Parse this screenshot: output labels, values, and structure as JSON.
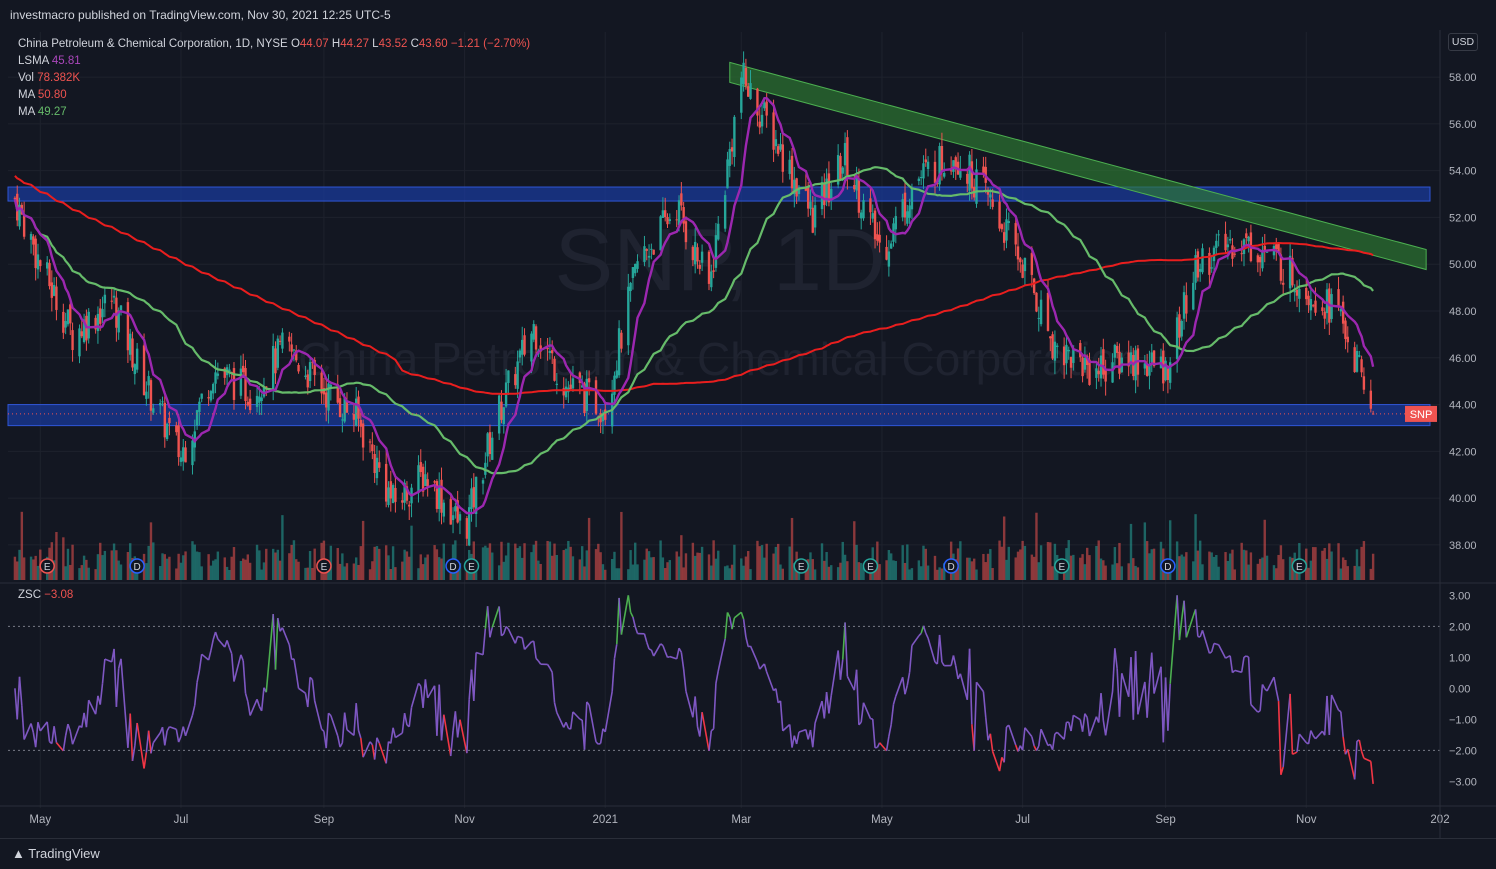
{
  "header": {
    "published": "investmacro published on TradingView.com, Nov 30, 2021 12:25 UTC-5"
  },
  "legend": {
    "symbol_line": "China Petroleum & Chemical Corporation, 1D, NYSE",
    "o_label": "O",
    "o": "44.07",
    "h_label": "H",
    "h": "44.27",
    "l_label": "L",
    "l": "43.52",
    "c_label": "C",
    "c": "43.60",
    "change": "−1.21 (−2.70%)",
    "lsma_label": "LSMA",
    "lsma": "45.81",
    "vol_label": "Vol",
    "vol": "78.382K",
    "ma1_label": "MA",
    "ma1": "50.80",
    "ma2_label": "MA",
    "ma2": "49.27",
    "zsc_label": "ZSC",
    "zsc": "−3.08"
  },
  "currency": "USD",
  "watermark": {
    "ticker": "SNP, 1D",
    "name": "China Petroleum & Chemical Corporation"
  },
  "price_tag": "SNP",
  "footer": {
    "brand": "TradingView"
  },
  "colors": {
    "up": "#26a69a",
    "down": "#ef5350",
    "lsma": "#9c27b0",
    "ma_red": "#e91e1e",
    "ma_green": "#66bb6a",
    "zone_blue": "#1a3a9a",
    "trend_green": "#2e7d32",
    "zsc": "#7e57c2"
  },
  "chart_data": [
    {
      "type": "candlestick",
      "title": "China Petroleum & Chemical Corporation, 1D, NYSE",
      "x_ticks": [
        "May",
        "Jul",
        "Sep",
        "Nov",
        "2021",
        "Mar",
        "May",
        "Jul",
        "Sep",
        "Nov",
        "202"
      ],
      "y_ticks": [
        "58.00",
        "56.00",
        "54.00",
        "52.00",
        "50.00",
        "48.00",
        "46.00",
        "44.00",
        "42.00",
        "40.00",
        "38.00"
      ],
      "ylim": [
        36.5,
        59.5
      ],
      "close_path": [
        [
          "2020-04-20",
          52.8
        ],
        [
          "2020-05-01",
          50
        ],
        [
          "2020-05-15",
          47
        ],
        [
          "2020-06-01",
          48.5
        ],
        [
          "2020-06-15",
          45
        ],
        [
          "2020-07-01",
          41.8
        ],
        [
          "2020-07-15",
          45.5
        ],
        [
          "2020-08-01",
          44.5
        ],
        [
          "2020-08-15",
          46.5
        ],
        [
          "2020-09-01",
          44.6
        ],
        [
          "2020-09-15",
          43.5
        ],
        [
          "2020-10-01",
          39.8
        ],
        [
          "2020-10-15",
          41
        ],
        [
          "2020-11-01",
          38.6
        ],
        [
          "2020-11-15",
          43.5
        ],
        [
          "2020-12-01",
          47.3
        ],
        [
          "2020-12-15",
          44.8
        ],
        [
          "2021-01-01",
          43.9
        ],
        [
          "2021-01-15",
          50
        ],
        [
          "2021-02-01",
          52.5
        ],
        [
          "2021-02-15",
          49
        ],
        [
          "2021-03-01",
          58
        ],
        [
          "2021-03-15",
          55.5
        ],
        [
          "2021-04-01",
          52
        ],
        [
          "2021-04-15",
          54.5
        ],
        [
          "2021-05-01",
          50.5
        ],
        [
          "2021-05-15",
          53.5
        ],
        [
          "2021-06-01",
          54.8
        ],
        [
          "2021-06-15",
          53
        ],
        [
          "2021-07-01",
          50
        ],
        [
          "2021-07-15",
          46.5
        ],
        [
          "2021-08-01",
          45.5
        ],
        [
          "2021-08-15",
          46
        ],
        [
          "2021-09-01",
          45.5
        ],
        [
          "2021-09-15",
          50
        ],
        [
          "2021-10-01",
          51
        ],
        [
          "2021-10-15",
          50.5
        ],
        [
          "2021-11-01",
          49
        ],
        [
          "2021-11-15",
          48
        ],
        [
          "2021-11-30",
          43.6
        ]
      ],
      "last_close": 43.6,
      "series": [
        {
          "name": "LSMA",
          "last": 45.81
        },
        {
          "name": "MA",
          "last": 50.8
        },
        {
          "name": "MA",
          "last": 49.27
        }
      ],
      "zones": [
        {
          "from": 52.7,
          "to": 53.3
        },
        {
          "from": 43.1,
          "to": 44.0
        }
      ],
      "trendline": {
        "start": [
          "2021-02-24",
          58.2
        ],
        "end": [
          "2021-12-23",
          50.2
        ]
      },
      "events": [
        "E",
        "D",
        "E",
        "D",
        "E",
        "E",
        "E",
        "D",
        "E",
        "D",
        "E"
      ]
    },
    {
      "type": "line",
      "title": "ZSC",
      "y_ticks": [
        "3.00",
        "2.00",
        "1.00",
        "0.00",
        "−1.00",
        "−2.00",
        "−3.00"
      ],
      "ylim": [
        -3.6,
        3.3
      ],
      "reference_lines": [
        2,
        -2
      ],
      "last": -3.08
    }
  ]
}
